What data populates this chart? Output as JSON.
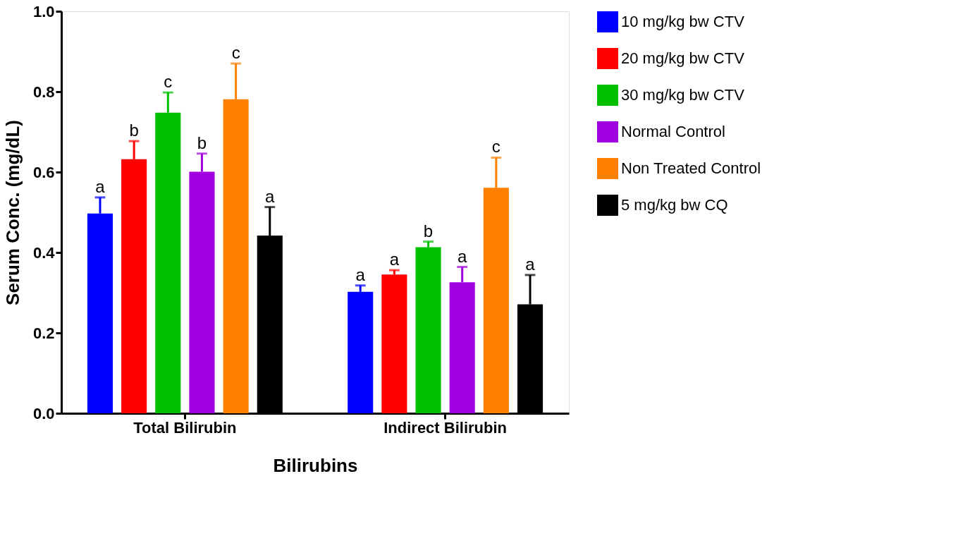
{
  "chart_data": {
    "type": "bar",
    "xlabel": "Bilirubins",
    "ylabel": "Serum Conc. (mg/dL)",
    "categories": [
      "Total Bilirubin",
      "Indirect Bilirubin"
    ],
    "ylim": [
      0,
      1.0
    ],
    "yticks": [
      {
        "value": 0,
        "label": "0.0"
      },
      {
        "value": 0.2,
        "label": "0.2"
      },
      {
        "value": 0.4,
        "label": "0.4"
      },
      {
        "value": 0.6,
        "label": "0.6"
      },
      {
        "value": 0.8,
        "label": "0.8"
      },
      {
        "value": 1.0,
        "label": "1.0"
      }
    ],
    "grid": false,
    "legend": "top right",
    "series": [
      {
        "name": "10 mg/kg bw CTV",
        "color": "#0000ff",
        "values": [
          0.497,
          0.302
        ],
        "errors": [
          [
            0.497,
            0.537
          ],
          [
            0.302,
            0.318
          ]
        ],
        "value_labels": [
          "a",
          "a"
        ]
      },
      {
        "name": "20 mg/kg bw CTV",
        "color": "#ff0000",
        "values": [
          0.632,
          0.345
        ],
        "errors": [
          [
            0.632,
            0.677
          ],
          [
            0.345,
            0.356
          ]
        ],
        "value_labels": [
          "b",
          "a"
        ]
      },
      {
        "name": "30 mg/kg bw CTV",
        "color": "#00c000",
        "values": [
          0.748,
          0.413
        ],
        "errors": [
          [
            0.748,
            0.798
          ],
          [
            0.413,
            0.427
          ]
        ],
        "value_labels": [
          "c",
          "b"
        ]
      },
      {
        "name": "Normal Control",
        "color": "#a000e0",
        "values": [
          0.601,
          0.326
        ],
        "errors": [
          [
            0.601,
            0.646
          ],
          [
            0.326,
            0.364
          ]
        ],
        "value_labels": [
          "b",
          "a"
        ]
      },
      {
        "name": "Non Treated Control",
        "color": "#ff8000",
        "values": [
          0.781,
          0.561
        ],
        "errors": [
          [
            0.781,
            0.87
          ],
          [
            0.561,
            0.636
          ]
        ],
        "value_labels": [
          "c",
          "c"
        ]
      },
      {
        "name": "5 mg/kg bw CQ",
        "color": "#000000",
        "values": [
          0.442,
          0.271
        ],
        "errors": [
          [
            0.442,
            0.513
          ],
          [
            0.271,
            0.344
          ]
        ],
        "value_labels": [
          "a",
          "a"
        ]
      }
    ]
  }
}
